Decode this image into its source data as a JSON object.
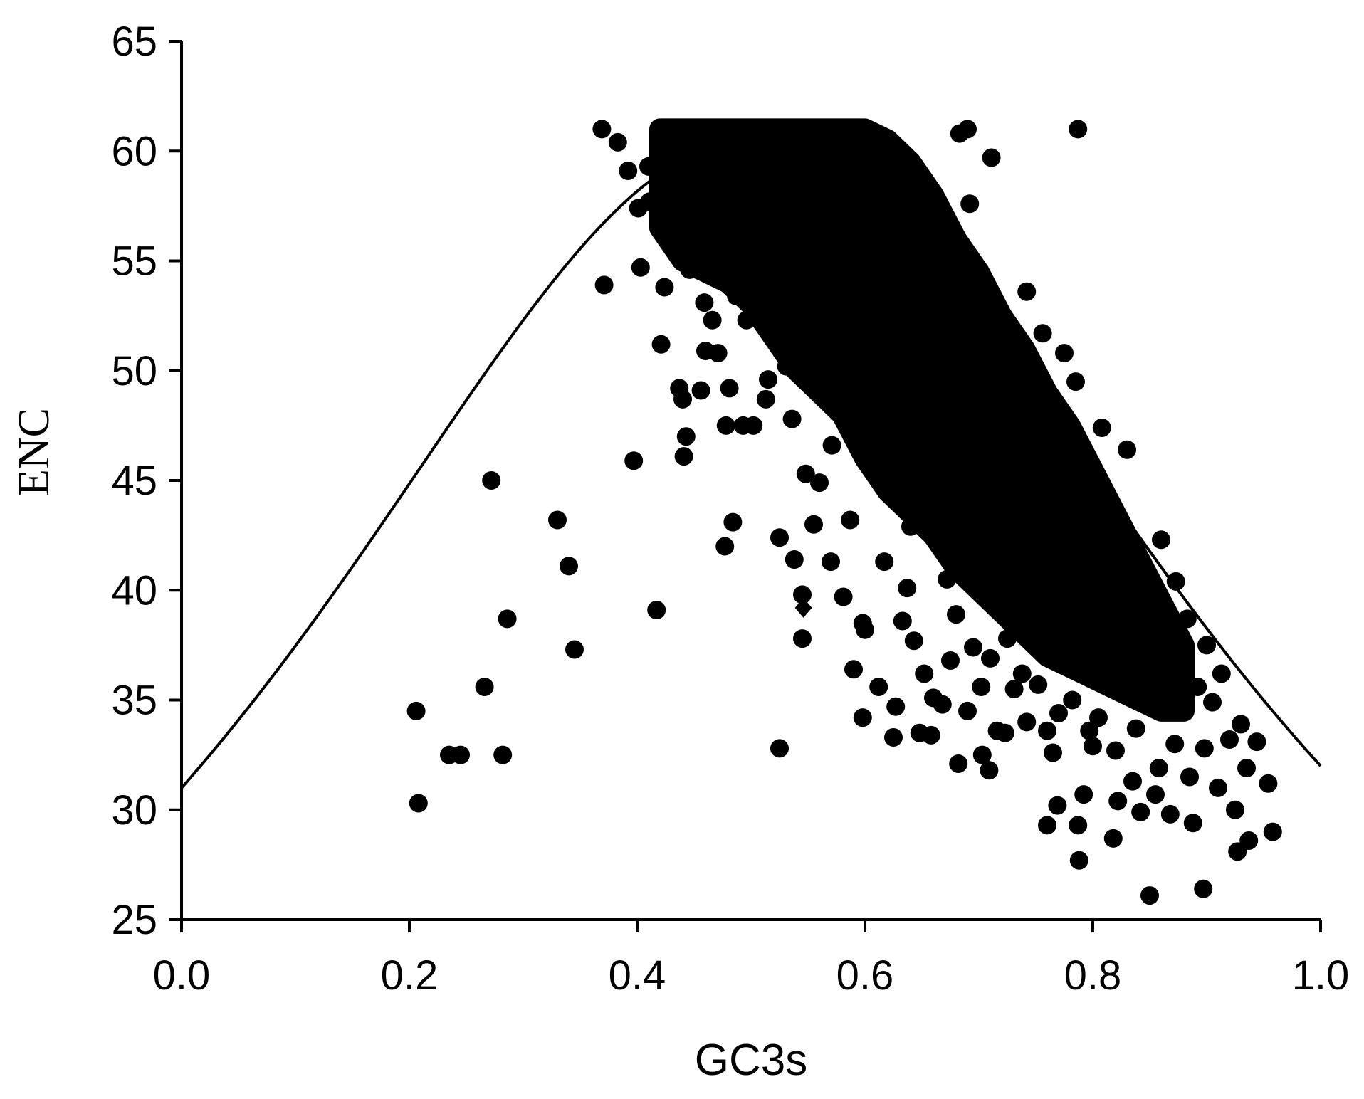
{
  "chart_data": {
    "type": "scatter",
    "title": "",
    "xlabel": "GC3s",
    "ylabel": "ENC",
    "xlim": [
      0.0,
      1.0
    ],
    "ylim": [
      25,
      65
    ],
    "x_ticks": [
      "0.0",
      "0.2",
      "0.4",
      "0.6",
      "0.8",
      "1.0"
    ],
    "y_ticks": [
      "25",
      "30",
      "35",
      "40",
      "45",
      "50",
      "55",
      "60",
      "65"
    ],
    "grid": false,
    "legend": "none",
    "marker_color": "#000000",
    "line_color": "#000000",
    "expected_curve": {
      "name": "",
      "formula": "ENC = 2 + GC3s + 29 / (GC3s^2 + (1 - GC3s)^2)",
      "x_range": [
        0.0,
        1.0
      ]
    },
    "series": [
      {
        "name": "",
        "marker": "circle",
        "points": [
          [
            0.206,
            34.5
          ],
          [
            0.208,
            30.3
          ],
          [
            0.235,
            32.5
          ],
          [
            0.245,
            32.5
          ],
          [
            0.266,
            35.6
          ],
          [
            0.272,
            45.0
          ],
          [
            0.282,
            32.5
          ],
          [
            0.286,
            38.7
          ],
          [
            0.33,
            43.2
          ],
          [
            0.34,
            41.1
          ],
          [
            0.345,
            37.3
          ],
          [
            0.369,
            61.0
          ],
          [
            0.371,
            53.9
          ],
          [
            0.383,
            60.4
          ],
          [
            0.392,
            59.1
          ],
          [
            0.397,
            45.9
          ],
          [
            0.401,
            57.4
          ],
          [
            0.403,
            54.7
          ],
          [
            0.41,
            59.3
          ],
          [
            0.417,
            39.1
          ],
          [
            0.421,
            51.2
          ],
          [
            0.424,
            53.8
          ],
          [
            0.437,
            49.2
          ],
          [
            0.44,
            48.7
          ],
          [
            0.443,
            47.0
          ],
          [
            0.441,
            46.1
          ],
          [
            0.456,
            49.1
          ],
          [
            0.46,
            50.9
          ],
          [
            0.466,
            52.3
          ],
          [
            0.471,
            50.8
          ],
          [
            0.478,
            47.5
          ],
          [
            0.477,
            42.0
          ],
          [
            0.481,
            49.2
          ],
          [
            0.484,
            43.1
          ],
          [
            0.493,
            47.5
          ],
          [
            0.502,
            47.5
          ],
          [
            0.513,
            48.7
          ],
          [
            0.525,
            42.4
          ],
          [
            0.525,
            32.8
          ],
          [
            0.538,
            41.4
          ],
          [
            0.545,
            39.8
          ],
          [
            0.545,
            37.8
          ],
          [
            0.548,
            45.3
          ],
          [
            0.555,
            43.0
          ],
          [
            0.57,
            41.3
          ],
          [
            0.581,
            39.7
          ],
          [
            0.59,
            36.4
          ],
          [
            0.598,
            34.2
          ],
          [
            0.6,
            38.2
          ],
          [
            0.625,
            33.3
          ],
          [
            0.627,
            34.7
          ],
          [
            0.633,
            38.6
          ],
          [
            0.643,
            37.7
          ],
          [
            0.648,
            33.5
          ],
          [
            0.652,
            36.2
          ],
          [
            0.658,
            33.4
          ],
          [
            0.668,
            34.8
          ],
          [
            0.675,
            36.8
          ],
          [
            0.682,
            32.1
          ],
          [
            0.683,
            60.8
          ],
          [
            0.69,
            61.0
          ],
          [
            0.692,
            57.6
          ],
          [
            0.703,
            32.5
          ],
          [
            0.709,
            31.8
          ],
          [
            0.711,
            59.7
          ],
          [
            0.716,
            33.6
          ],
          [
            0.723,
            33.5
          ],
          [
            0.742,
            53.6
          ],
          [
            0.756,
            51.7
          ],
          [
            0.76,
            33.6
          ],
          [
            0.765,
            32.6
          ],
          [
            0.775,
            50.8
          ],
          [
            0.785,
            49.5
          ],
          [
            0.787,
            61.0
          ],
          [
            0.787,
            29.3
          ],
          [
            0.788,
            27.7
          ],
          [
            0.792,
            30.7
          ],
          [
            0.797,
            33.6
          ],
          [
            0.8,
            32.9
          ],
          [
            0.808,
            47.4
          ],
          [
            0.818,
            28.7
          ],
          [
            0.822,
            30.4
          ],
          [
            0.83,
            46.4
          ],
          [
            0.838,
            33.7
          ],
          [
            0.85,
            26.1
          ],
          [
            0.855,
            30.7
          ],
          [
            0.86,
            42.3
          ],
          [
            0.868,
            29.8
          ],
          [
            0.873,
            40.4
          ],
          [
            0.883,
            38.7
          ],
          [
            0.888,
            29.4
          ],
          [
            0.897,
            26.4
          ],
          [
            0.9,
            37.5
          ],
          [
            0.913,
            36.2
          ],
          [
            0.92,
            33.2
          ],
          [
            0.927,
            28.1
          ],
          [
            0.93,
            33.9
          ],
          [
            0.937,
            28.6
          ],
          [
            0.944,
            33.1
          ],
          [
            0.954,
            31.2
          ],
          [
            0.958,
            29.0
          ],
          [
            0.76,
            29.3
          ],
          [
            0.769,
            30.2
          ],
          [
            0.731,
            35.5
          ],
          [
            0.742,
            34.0
          ],
          [
            0.69,
            34.5
          ],
          [
            0.702,
            35.6
          ],
          [
            0.66,
            35.1
          ],
          [
            0.612,
            35.6
          ],
          [
            0.598,
            38.5
          ],
          [
            0.587,
            43.2
          ],
          [
            0.617,
            41.3
          ],
          [
            0.637,
            40.1
          ],
          [
            0.56,
            44.9
          ],
          [
            0.571,
            46.6
          ],
          [
            0.536,
            47.8
          ],
          [
            0.531,
            50.2
          ],
          [
            0.515,
            49.6
          ],
          [
            0.496,
            52.3
          ],
          [
            0.487,
            53.4
          ],
          [
            0.459,
            53.1
          ],
          [
            0.446,
            54.6
          ],
          [
            0.432,
            55.6
          ],
          [
            0.419,
            56.8
          ],
          [
            0.411,
            57.7
          ],
          [
            0.439,
            58.8
          ],
          [
            0.455,
            57.3
          ],
          [
            0.64,
            42.9
          ],
          [
            0.655,
            44.1
          ],
          [
            0.672,
            40.5
          ],
          [
            0.68,
            38.9
          ],
          [
            0.695,
            37.4
          ],
          [
            0.71,
            36.9
          ],
          [
            0.725,
            37.8
          ],
          [
            0.738,
            36.2
          ],
          [
            0.752,
            35.7
          ],
          [
            0.77,
            34.4
          ],
          [
            0.782,
            35.0
          ],
          [
            0.805,
            34.2
          ],
          [
            0.82,
            32.7
          ],
          [
            0.835,
            31.3
          ],
          [
            0.842,
            29.9
          ],
          [
            0.858,
            31.9
          ],
          [
            0.872,
            33.0
          ],
          [
            0.885,
            31.5
          ],
          [
            0.898,
            32.8
          ],
          [
            0.91,
            31.0
          ],
          [
            0.925,
            30.0
          ],
          [
            0.935,
            31.9
          ],
          [
            0.905,
            34.9
          ],
          [
            0.892,
            35.6
          ],
          [
            0.877,
            36.8
          ],
          [
            0.864,
            37.9
          ],
          [
            0.85,
            38.8
          ],
          [
            0.83,
            39.6
          ],
          [
            0.815,
            41.0
          ],
          [
            0.8,
            42.1
          ],
          [
            0.79,
            43.5
          ],
          [
            0.775,
            44.8
          ],
          [
            0.76,
            46.0
          ],
          [
            0.745,
            47.4
          ],
          [
            0.73,
            48.6
          ],
          [
            0.715,
            50.1
          ],
          [
            0.7,
            51.7
          ],
          [
            0.685,
            53.0
          ],
          [
            0.67,
            54.8
          ],
          [
            0.655,
            56.4
          ],
          [
            0.64,
            57.9
          ],
          [
            0.625,
            59.1
          ],
          [
            0.61,
            60.2
          ]
        ]
      },
      {
        "name": "",
        "marker": "diamond",
        "points": [
          [
            0.546,
            39.2
          ]
        ]
      }
    ],
    "density_bands": [
      {
        "x": 0.42,
        "y_low": 56.5,
        "y_high": 61.0
      },
      {
        "x": 0.44,
        "y_low": 55.0,
        "y_high": 61.0
      },
      {
        "x": 0.46,
        "y_low": 54.5,
        "y_high": 61.0
      },
      {
        "x": 0.48,
        "y_low": 54.0,
        "y_high": 61.0
      },
      {
        "x": 0.5,
        "y_low": 53.0,
        "y_high": 61.0
      },
      {
        "x": 0.52,
        "y_low": 51.5,
        "y_high": 61.0
      },
      {
        "x": 0.54,
        "y_low": 50.0,
        "y_high": 61.0
      },
      {
        "x": 0.56,
        "y_low": 49.0,
        "y_high": 61.0
      },
      {
        "x": 0.58,
        "y_low": 48.0,
        "y_high": 61.0
      },
      {
        "x": 0.6,
        "y_low": 46.0,
        "y_high": 61.0
      },
      {
        "x": 0.62,
        "y_low": 44.5,
        "y_high": 60.5
      },
      {
        "x": 0.64,
        "y_low": 43.5,
        "y_high": 59.5
      },
      {
        "x": 0.66,
        "y_low": 42.5,
        "y_high": 58.0
      },
      {
        "x": 0.68,
        "y_low": 41.0,
        "y_high": 56.0
      },
      {
        "x": 0.7,
        "y_low": 40.0,
        "y_high": 54.5
      },
      {
        "x": 0.72,
        "y_low": 39.0,
        "y_high": 52.5
      },
      {
        "x": 0.74,
        "y_low": 38.0,
        "y_high": 51.0
      },
      {
        "x": 0.76,
        "y_low": 37.0,
        "y_high": 49.0
      },
      {
        "x": 0.78,
        "y_low": 36.5,
        "y_high": 47.5
      },
      {
        "x": 0.8,
        "y_low": 36.0,
        "y_high": 45.5
      },
      {
        "x": 0.82,
        "y_low": 35.5,
        "y_high": 43.5
      },
      {
        "x": 0.84,
        "y_low": 35.0,
        "y_high": 41.5
      },
      {
        "x": 0.86,
        "y_low": 34.5,
        "y_high": 39.5
      },
      {
        "x": 0.88,
        "y_low": 34.5,
        "y_high": 37.5
      }
    ]
  }
}
